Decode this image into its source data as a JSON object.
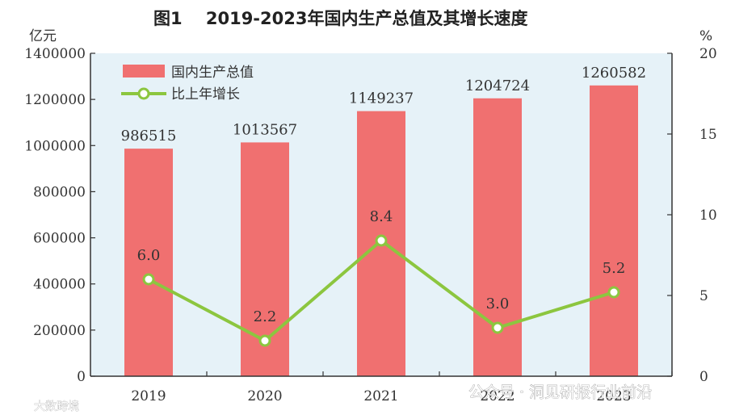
{
  "chart_data": {
    "type": "bar",
    "title": "图1    2019-2023年国内生产总值及其增长速度",
    "left_unit": "亿元",
    "right_unit": "%",
    "categories": [
      "2019",
      "2020",
      "2021",
      "2022",
      "2023"
    ],
    "series": [
      {
        "name": "国内生产总值",
        "type": "bar",
        "axis": "left",
        "values": [
          986515,
          1013567,
          1149237,
          1204724,
          1260582
        ],
        "labels": [
          "986515",
          "1013567",
          "1149237",
          "1204724",
          "1260582"
        ]
      },
      {
        "name": "比上年增长",
        "type": "line",
        "axis": "right",
        "values": [
          6.0,
          2.2,
          8.4,
          3.0,
          5.2
        ],
        "labels": [
          "6.0",
          "2.2",
          "8.4",
          "3.0",
          "5.2"
        ]
      }
    ],
    "ylim_left": [
      0,
      1400000
    ],
    "yticks_left": [
      "0",
      "200000",
      "400000",
      "600000",
      "800000",
      "1000000",
      "1200000",
      "1400000"
    ],
    "ylim_right": [
      0,
      20
    ],
    "yticks_right": [
      "0",
      "5",
      "10",
      "15",
      "20"
    ],
    "legend_position": "top-left",
    "grid": false,
    "colors": {
      "plot_background": "#e6f2f8",
      "bar": "#f07070",
      "line": "#8cc63f",
      "marker_fill": "#ffffff"
    }
  },
  "watermark": {
    "text": "公众号 · 洞见研报行业前沿",
    "corner_text": "大数跨境"
  }
}
